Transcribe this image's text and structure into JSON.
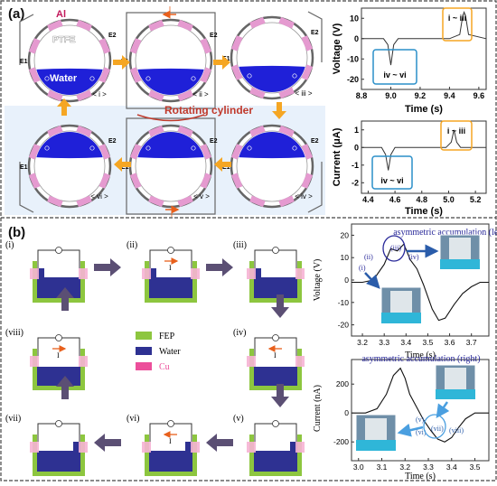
{
  "panel_a": {
    "label": "(a)",
    "schematic": {
      "label_al": "Al",
      "label_ptfe": "PTFE",
      "label_water": "Water",
      "label_rotating": "Rotating cylinder",
      "label_current": "I",
      "electrodes": {
        "e1": "E1",
        "e2": "E2"
      },
      "steps": [
        "< i >",
        "< ii >",
        "< iii >",
        "< iv >",
        "< v >",
        "< vi >"
      ]
    },
    "voltage_plot": {
      "ylabel": "Voltage (V)",
      "xlabel": "Time (s)",
      "yticks": [
        "10",
        "0",
        "-10",
        "-20"
      ],
      "xticks": [
        "8.8",
        "9.0",
        "9.2",
        "9.4",
        "9.6"
      ],
      "box_pos": "i ~ iii",
      "box_neg": "iv ~ vi",
      "chart_data": {
        "type": "line",
        "xlim": [
          8.8,
          9.65
        ],
        "ylim": [
          -25,
          15
        ],
        "x": [
          8.8,
          8.9,
          8.95,
          8.98,
          9.0,
          9.02,
          9.05,
          9.2,
          9.4,
          9.47,
          9.49,
          9.5,
          9.51,
          9.53,
          9.65
        ],
        "y": [
          0,
          0,
          0,
          -3,
          -13,
          -3,
          0,
          0,
          0,
          2,
          11,
          13,
          11,
          2,
          0
        ]
      }
    },
    "current_plot": {
      "ylabel": "Current (μA)",
      "xlabel": "Time (s)",
      "yticks": [
        "1",
        "0",
        "-1",
        "-2"
      ],
      "xticks": [
        "4.4",
        "4.6",
        "4.8",
        "5.0",
        "5.2"
      ],
      "box_pos": "i ~ iii",
      "box_neg": "iv ~ vi",
      "chart_data": {
        "type": "line",
        "xlim": [
          4.35,
          5.28
        ],
        "ylim": [
          -2.6,
          1.5
        ],
        "x": [
          4.35,
          4.45,
          4.5,
          4.53,
          4.55,
          4.57,
          4.6,
          4.8,
          4.98,
          5.02,
          5.04,
          5.06,
          5.09,
          5.28
        ],
        "y": [
          0,
          0,
          0,
          -0.4,
          -1.3,
          -0.4,
          0,
          0,
          0,
          0.3,
          1.0,
          0.3,
          0,
          0
        ]
      }
    }
  },
  "panel_b": {
    "label": "(b)",
    "steps": [
      "(i)",
      "(ii)",
      "(iii)",
      "(iv)",
      "(v)",
      "(vi)",
      "(vii)",
      "(viii)"
    ],
    "label_current": "I",
    "legend": [
      {
        "label": "FEP",
        "color": "#8dc63f"
      },
      {
        "label": "Water",
        "color": "#2e3192"
      },
      {
        "label": "Cu",
        "color": "#ec4f9b"
      }
    ],
    "voltage_plot": {
      "title": "asymmetric accumulation (left)",
      "ylabel": "Voltage (V)",
      "xlabel": "Time (s)",
      "yticks": [
        "20",
        "10",
        "0",
        "-10",
        "-20"
      ],
      "xticks": [
        "3.2",
        "3.3",
        "3.4",
        "3.5",
        "3.6",
        "3.7"
      ],
      "point_labels": [
        "(i)",
        "(ii)",
        "(iii)",
        "(iv)"
      ],
      "chart_data": {
        "type": "line",
        "xlim": [
          3.15,
          3.78
        ],
        "ylim": [
          -25,
          25
        ],
        "x": [
          3.15,
          3.2,
          3.25,
          3.3,
          3.33,
          3.36,
          3.39,
          3.42,
          3.45,
          3.48,
          3.52,
          3.55,
          3.58,
          3.62,
          3.66,
          3.7,
          3.74,
          3.78
        ],
        "y": [
          -1,
          -1,
          0,
          7,
          14,
          13,
          16,
          9,
          5,
          -2,
          -13,
          -18,
          -17,
          -11,
          -6,
          -3,
          -1,
          -1
        ]
      }
    },
    "current_plot": {
      "title": "asymmetric accumulation (right)",
      "ylabel": "Current (nA)",
      "xlabel": "Time (s)",
      "yticks": [
        "200",
        "0",
        "-200"
      ],
      "xticks": [
        "3.0",
        "3.1",
        "3.2",
        "3.3",
        "3.4",
        "3.5"
      ],
      "point_labels": [
        "(v)",
        "(vi)",
        "(vii)",
        "(viii)"
      ],
      "chart_data": {
        "type": "line",
        "xlim": [
          2.97,
          3.56
        ],
        "ylim": [
          -330,
          370
        ],
        "x": [
          2.97,
          3.03,
          3.08,
          3.12,
          3.15,
          3.18,
          3.2,
          3.22,
          3.25,
          3.28,
          3.31,
          3.34,
          3.37,
          3.4,
          3.43,
          3.46,
          3.5,
          3.56
        ],
        "y": [
          0,
          0,
          30,
          130,
          260,
          310,
          240,
          130,
          40,
          -50,
          -120,
          -180,
          -200,
          -170,
          -100,
          -40,
          0,
          0
        ]
      }
    }
  }
}
